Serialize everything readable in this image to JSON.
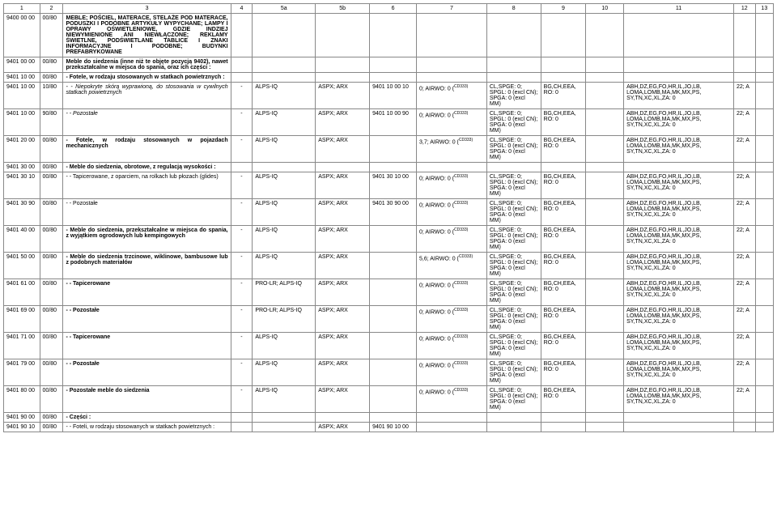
{
  "columns": [
    "1",
    "2",
    "3",
    "4",
    "5a",
    "5b",
    "6",
    "7",
    "8",
    "9",
    "10",
    "11",
    "12",
    "13"
  ],
  "rows": [
    {
      "c1": "9400 00 00",
      "c2": "00/80",
      "c3": "MEBLE; POŚCIEL, MATERACE, STELAŻE POD MATERACE, PODUSZKI I PODOBNE ARTYKUŁY WYPYCHANE; LAMPY I OPRAWY OŚWIETLENIOWE, GDZIE INDZIEJ NIEWYMIENIONE ANI NIEWŁĄCZONE; REKLAMY ŚWIETLNE, PODŚWIETLANE TABLICE I ZNAKI INFORMACYJNE I PODOBNE; BUDYNKI PREFABRYKOWANE",
      "bold": true
    },
    {
      "c1": "9401 00 00",
      "c2": "00/80",
      "c3": "Meble do siedzenia (inne niż te objęte pozycją 9402), nawet przekształcalne w miejsca do spania, oraz ich części :",
      "bold": true
    },
    {
      "c1": "9401 10 00",
      "c2": "00/80",
      "c3": "- Fotele, w rodzaju stosowanych w statkach powietrznych :",
      "bold": true
    },
    {
      "c1": "9401 10 00",
      "c2": "10/80",
      "c3": "- - Niepokryte skórą wyprawioną, do stosowania w cywilnych statkach powietrznych",
      "c4": "-",
      "c5a": "ALPS-IQ",
      "c5b": "ASPX; ARX",
      "c6": "9401 10 00 10",
      "c7": "0; AIRWO: 0 (",
      "c7sup": "CD333)",
      "c8": "CL,SPGE: 0; SPGL: 0 (excl CN); SPGA: 0 (excl MM)",
      "c9": "BG,CH,EEA, RO: 0",
      "c11": "ABH,DZ,EG,FO,HR,IL,JO,LB, LOMA,LOMB,MA,MK,MX,PS, SY,TN,XC,XL,ZA: 0",
      "c12": "22; A",
      "italic": true
    },
    {
      "c1": "9401 10 00",
      "c2": "90/80",
      "c3": "- - Pozostałe",
      "c4": "-",
      "c5a": "ALPS-IQ",
      "c5b": "ASPX; ARX",
      "c6": "9401 10 00 90",
      "c7": "0; AIRWO: 0 (",
      "c7sup": "CD333)",
      "c8": "CL,SPGE: 0; SPGL: 0 (excl CN); SPGA: 0 (excl MM)",
      "c9": "BG,CH,EEA, RO: 0",
      "c11": "ABH,DZ,EG,FO,HR,IL,JO,LB, LOMA,LOMB,MA,MK,MX,PS, SY,TN,XC,XL,ZA: 0",
      "c12": "22; A",
      "italic": true
    },
    {
      "c1": "9401 20 00",
      "c2": "00/80",
      "c3": "- Fotele, w rodzaju stosowanych w pojazdach mechanicznych",
      "c4": "-",
      "c5a": "ALPS-IQ",
      "c5b": "ASPX; ARX",
      "c7": "3,7; AIRWO: 0 (",
      "c7sup": "CD333)",
      "c8": "CL,SPGE: 0; SPGL: 0 (excl CN); SPGA: 0 (excl MM)",
      "c9": "BG,CH,EEA, RO: 0",
      "c11": "ABH,DZ,EG,FO,HR,IL,JO,LB, LOMA,LOMB,MA,MK,MX,PS, SY,TN,XC,XL,ZA: 0",
      "c12": "22; A",
      "bold": true
    },
    {
      "c1": "9401 30 00",
      "c2": "00/80",
      "c3": "- Meble do siedzenia, obrotowe, z regulacją wysokości :",
      "bold": true
    },
    {
      "c1": "9401 30 10",
      "c2": "00/80",
      "c3": "- - Tapicerowane, z oparciem, na rolkach lub płozach (glides)",
      "c4": "-",
      "c5a": "ALPS-IQ",
      "c5b": "ASPX; ARX",
      "c6": "9401 30 10 00",
      "c7": "0; AIRWO: 0 (",
      "c7sup": "CD333)",
      "c8": "CL,SPGE: 0; SPGL: 0 (excl CN); SPGA: 0 (excl MM)",
      "c9": "BG,CH,EEA, RO: 0",
      "c11": "ABH,DZ,EG,FO,HR,IL,JO,LB, LOMA,LOMB,MA,MK,MX,PS, SY,TN,XC,XL,ZA: 0",
      "c12": "22; A"
    },
    {
      "c1": "9401 30 90",
      "c2": "00/80",
      "c3": "- - Pozostałe",
      "c4": "-",
      "c5a": "ALPS-IQ",
      "c5b": "ASPX; ARX",
      "c6": "9401 30 90 00",
      "c7": "0; AIRWO: 0 (",
      "c7sup": "CD333)",
      "c8": "CL,SPGE: 0; SPGL: 0 (excl CN); SPGA: 0 (excl MM)",
      "c9": "BG,CH,EEA, RO: 0",
      "c11": "ABH,DZ,EG,FO,HR,IL,JO,LB, LOMA,LOMB,MA,MK,MX,PS, SY,TN,XC,XL,ZA: 0",
      "c12": "22; A"
    },
    {
      "c1": "9401 40 00",
      "c2": "00/80",
      "c3": "- Meble do siedzenia, przekształcalne w miejsca do spania, z wyjątkiem ogrodowych lub kempingowych",
      "c4": "-",
      "c5a": "ALPS-IQ",
      "c5b": "ASPX; ARX",
      "c7": "0; AIRWO: 0 (",
      "c7sup": "CD333)",
      "c8": "CL,SPGE: 0; SPGL: 0 (excl CN); SPGA: 0 (excl MM)",
      "c9": "BG,CH,EEA, RO: 0",
      "c11": "ABH,DZ,EG,FO,HR,IL,JO,LB, LOMA,LOMB,MA,MK,MX,PS, SY,TN,XC,XL,ZA: 0",
      "c12": "22; A",
      "bold": true
    },
    {
      "c1": "9401 50 00",
      "c2": "00/80",
      "c3": "- Meble do siedzenia trzcinowe, wiklinowe, bambusowe lub z podobnych materiałów",
      "c4": "-",
      "c5a": "ALPS-IQ",
      "c5b": "ASPX; ARX",
      "c7": "5,6; AIRWO: 0 (",
      "c7sup": "CD333)",
      "c8": "CL,SPGE: 0; SPGL: 0 (excl CN); SPGA: 0 (excl MM)",
      "c9": "BG,CH,EEA, RO: 0",
      "c11": "ABH,DZ,EG,FO,HR,IL,JO,LB, LOMA,LOMB,MA,MK,MX,PS, SY,TN,XC,XL,ZA: 0",
      "c12": "22; A",
      "bold": true
    },
    {
      "c1": "9401 61 00",
      "c2": "00/80",
      "c3": "- - Tapicerowane",
      "c4": "-",
      "c5a": "PRO-LR; ALPS-IQ",
      "c5b": "ASPX; ARX",
      "c7": "0; AIRWO: 0 (",
      "c7sup": "CD333)",
      "c8": "CL,SPGE: 0; SPGL: 0 (excl CN); SPGA: 0 (excl MM)",
      "c9": "BG,CH,EEA, RO: 0",
      "c11": "ABH,DZ,EG,FO,HR,IL,JO,LB, LOMA,LOMB,MA,MK,MX,PS, SY,TN,XC,XL,ZA: 0",
      "c12": "22; A",
      "bold": true
    },
    {
      "c1": "9401 69 00",
      "c2": "00/80",
      "c3": "- - Pozostałe",
      "c4": "-",
      "c5a": "PRO-LR; ALPS-IQ",
      "c5b": "ASPX; ARX",
      "c7": "0; AIRWO: 0 (",
      "c7sup": "CD333)",
      "c8": "CL,SPGE: 0; SPGL: 0 (excl CN); SPGA: 0 (excl MM)",
      "c9": "BG,CH,EEA, RO: 0",
      "c11": "ABH,DZ,EG,FO,HR,IL,JO,LB, LOMA,LOMB,MA,MK,MX,PS, SY,TN,XC,XL,ZA: 0",
      "c12": "22; A",
      "bold": true
    },
    {
      "c1": "9401 71 00",
      "c2": "00/80",
      "c3": "- - Tapicerowane",
      "c4": "-",
      "c5a": "ALPS-IQ",
      "c5b": "ASPX; ARX",
      "c7": "0; AIRWO: 0 (",
      "c7sup": "CD333)",
      "c8": "CL,SPGE: 0; SPGL: 0 (excl CN); SPGA: 0 (excl MM)",
      "c9": "BG,CH,EEA, RO: 0",
      "c11": "ABH,DZ,EG,FO,HR,IL,JO,LB, LOMA,LOMB,MA,MK,MX,PS, SY,TN,XC,XL,ZA: 0",
      "c12": "22; A",
      "bold": true
    },
    {
      "c1": "9401 79 00",
      "c2": "00/80",
      "c3": "- - Pozostałe",
      "c4": "-",
      "c5a": "ALPS-IQ",
      "c5b": "ASPX; ARX",
      "c7": "0; AIRWO: 0 (",
      "c7sup": "CD333)",
      "c8": "CL,SPGE: 0; SPGL: 0 (excl CN); SPGA: 0 (excl MM)",
      "c9": "BG,CH,EEA, RO: 0",
      "c11": "ABH,DZ,EG,FO,HR,IL,JO,LB, LOMA,LOMB,MA,MK,MX,PS, SY,TN,XC,XL,ZA: 0",
      "c12": "22; A",
      "bold": true
    },
    {
      "c1": "9401 80 00",
      "c2": "00/80",
      "c3": "- Pozostałe meble do siedzenia",
      "c4": "-",
      "c5a": "ALPS-IQ",
      "c5b": "ASPX; ARX",
      "c7": "0; AIRWO: 0 (",
      "c7sup": "CD333)",
      "c8": "CL,SPGE: 0; SPGL: 0 (excl CN); SPGA: 0 (excl MM)",
      "c9": "BG,CH,EEA, RO: 0",
      "c11": "ABH,DZ,EG,FO,HR,IL,JO,LB, LOMA,LOMB,MA,MK,MX,PS, SY,TN,XC,XL,ZA: 0",
      "c12": "22; A",
      "bold": true
    },
    {
      "c1": "9401 90 00",
      "c2": "00/80",
      "c3": "- Części :",
      "bold": true
    },
    {
      "c1": "9401 90 10",
      "c2": "00/80",
      "c3": "- - Foteli, w rodzaju stosowanych w statkach powietrznych :",
      "c5b": "ASPX; ARX",
      "c6": "9401 90 10 00"
    }
  ]
}
